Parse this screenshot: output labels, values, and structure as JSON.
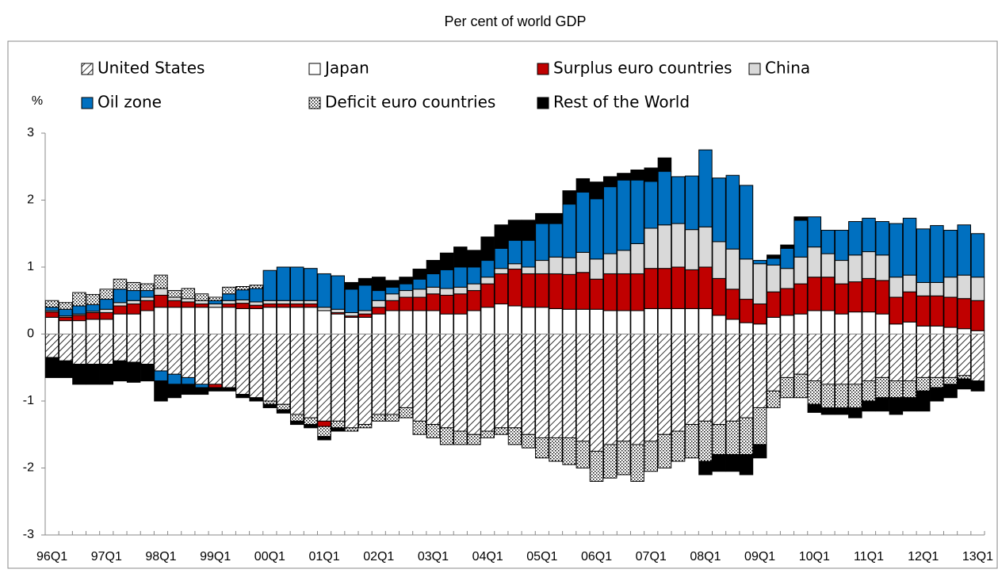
{
  "chart_data": {
    "type": "stacked-bar",
    "title": "Per cent of world GDP",
    "y_label": "%",
    "categories": [
      "96Q1",
      null,
      null,
      null,
      "97Q1",
      null,
      null,
      null,
      "98Q1",
      null,
      null,
      null,
      "99Q1",
      null,
      null,
      null,
      "00Q1",
      null,
      null,
      null,
      "01Q1",
      null,
      null,
      null,
      "02Q1",
      null,
      null,
      null,
      "03Q1",
      null,
      null,
      null,
      "04Q1",
      null,
      null,
      null,
      "05Q1",
      null,
      null,
      null,
      "06Q1",
      null,
      null,
      null,
      "07Q1",
      null,
      null,
      null,
      "08Q1",
      null,
      null,
      null,
      "09Q1",
      null,
      null,
      null,
      "10Q1",
      null,
      null,
      null,
      "11Q1",
      null,
      null,
      null,
      "12Q1",
      null,
      null,
      null,
      "13Q1"
    ],
    "series": [
      {
        "name": "United States",
        "color": "#000000",
        "pattern": "hatch",
        "values": [
          -0.35,
          -0.4,
          -0.45,
          -0.45,
          -0.45,
          -0.4,
          -0.42,
          -0.45,
          -0.55,
          -0.6,
          -0.65,
          -0.75,
          -0.75,
          -0.8,
          -0.9,
          -0.95,
          -1.0,
          -1.05,
          -1.2,
          -1.25,
          -1.3,
          -1.3,
          -1.4,
          -1.35,
          -1.2,
          -1.2,
          -1.1,
          -1.3,
          -1.35,
          -1.4,
          -1.45,
          -1.5,
          -1.45,
          -1.4,
          -1.4,
          -1.5,
          -1.55,
          -1.55,
          -1.55,
          -1.6,
          -1.75,
          -1.65,
          -1.6,
          -1.65,
          -1.6,
          -1.5,
          -1.45,
          -1.35,
          -1.3,
          -1.35,
          -1.3,
          -1.25,
          -1.1,
          -0.85,
          -0.65,
          -0.6,
          -0.7,
          -0.75,
          -0.75,
          -0.75,
          -0.7,
          -0.65,
          -0.7,
          -0.7,
          -0.65,
          -0.65,
          -0.65,
          -0.62,
          -0.7
        ]
      },
      {
        "name": "Japan",
        "color": "#ffffff",
        "values": [
          0.25,
          0.2,
          0.2,
          0.22,
          0.22,
          0.3,
          0.3,
          0.35,
          0.4,
          0.4,
          0.4,
          0.4,
          0.4,
          0.4,
          0.38,
          0.38,
          0.4,
          0.4,
          0.4,
          0.4,
          0.35,
          0.3,
          0.25,
          0.25,
          0.3,
          0.35,
          0.35,
          0.35,
          0.35,
          0.3,
          0.3,
          0.35,
          0.4,
          0.45,
          0.42,
          0.4,
          0.4,
          0.38,
          0.37,
          0.37,
          0.37,
          0.35,
          0.35,
          0.35,
          0.38,
          0.38,
          0.38,
          0.38,
          0.38,
          0.28,
          0.22,
          0.17,
          0.15,
          0.25,
          0.28,
          0.3,
          0.35,
          0.35,
          0.3,
          0.33,
          0.33,
          0.3,
          0.15,
          0.18,
          0.12,
          0.12,
          0.1,
          0.08,
          0.05
        ]
      },
      {
        "name": "Surplus euro countries",
        "color": "#c00000",
        "values": [
          0.08,
          0.05,
          0.08,
          0.1,
          0.1,
          0.12,
          0.15,
          0.15,
          0.18,
          0.1,
          0.08,
          0.05,
          -0.05,
          0.05,
          0.08,
          0.05,
          0.05,
          0.05,
          0.05,
          0.05,
          -0.08,
          0.02,
          0.02,
          0.05,
          0.1,
          0.15,
          0.2,
          0.2,
          0.25,
          0.28,
          0.3,
          0.3,
          0.35,
          0.45,
          0.55,
          0.5,
          0.5,
          0.52,
          0.52,
          0.55,
          0.45,
          0.55,
          0.55,
          0.55,
          0.6,
          0.6,
          0.62,
          0.58,
          0.62,
          0.55,
          0.45,
          0.35,
          0.3,
          0.38,
          0.4,
          0.45,
          0.5,
          0.5,
          0.45,
          0.45,
          0.5,
          0.5,
          0.4,
          0.45,
          0.45,
          0.45,
          0.45,
          0.45,
          0.45
        ]
      },
      {
        "name": "China",
        "color": "#d9d9d9",
        "values": [
          0.02,
          0.02,
          0.02,
          0.02,
          0.05,
          0.05,
          0.05,
          0.05,
          0.1,
          0.05,
          0.05,
          0.05,
          0.05,
          0.05,
          0.05,
          0.05,
          0.05,
          0.05,
          0.05,
          0.05,
          0.05,
          0.05,
          0.05,
          0.05,
          0.1,
          0.1,
          0.1,
          0.12,
          0.1,
          0.1,
          0.1,
          0.1,
          0.1,
          0.08,
          0.08,
          0.1,
          0.2,
          0.25,
          0.25,
          0.3,
          0.3,
          0.3,
          0.35,
          0.45,
          0.6,
          0.65,
          0.65,
          0.6,
          0.6,
          0.55,
          0.6,
          0.6,
          0.6,
          0.4,
          0.3,
          0.4,
          0.45,
          0.35,
          0.35,
          0.4,
          0.4,
          0.38,
          0.3,
          0.25,
          0.2,
          0.2,
          0.3,
          0.35,
          0.35
        ]
      },
      {
        "name": "Oil zone",
        "color": "#0070c0",
        "values": [
          0.05,
          0.1,
          0.12,
          0.1,
          0.15,
          0.2,
          0.15,
          0.1,
          -0.15,
          -0.15,
          -0.1,
          -0.05,
          0.05,
          0.1,
          0.15,
          0.2,
          0.45,
          0.5,
          0.5,
          0.48,
          0.5,
          0.5,
          0.35,
          0.38,
          0.15,
          0.1,
          0.1,
          0.15,
          0.2,
          0.28,
          0.3,
          0.25,
          0.25,
          0.3,
          0.35,
          0.4,
          0.55,
          0.5,
          0.8,
          0.9,
          0.9,
          1.0,
          1.05,
          0.95,
          0.7,
          0.8,
          0.7,
          0.8,
          1.15,
          0.95,
          1.1,
          1.1,
          0.05,
          0.1,
          0.3,
          0.55,
          0.45,
          0.35,
          0.45,
          0.5,
          0.5,
          0.5,
          0.8,
          0.85,
          0.8,
          0.85,
          0.7,
          0.75,
          0.65
        ]
      },
      {
        "name": "Deficit euro countries",
        "color": "#000000",
        "pattern": "dots",
        "values": [
          0.1,
          0.1,
          0.2,
          0.15,
          0.15,
          0.15,
          0.12,
          0.1,
          0.2,
          0.1,
          0.15,
          0.1,
          0.05,
          0.1,
          0.05,
          0.05,
          -0.05,
          -0.08,
          -0.1,
          -0.1,
          -0.15,
          -0.1,
          -0.05,
          -0.05,
          -0.1,
          -0.1,
          -0.15,
          -0.2,
          -0.2,
          -0.25,
          -0.2,
          -0.15,
          -0.1,
          -0.1,
          -0.25,
          -0.2,
          -0.3,
          -0.35,
          -0.4,
          -0.4,
          -0.45,
          -0.5,
          -0.5,
          -0.55,
          -0.45,
          -0.5,
          -0.45,
          -0.5,
          -0.6,
          -0.45,
          -0.5,
          -0.55,
          -0.55,
          -0.25,
          -0.3,
          -0.35,
          -0.35,
          -0.35,
          -0.35,
          -0.35,
          -0.3,
          -0.3,
          -0.25,
          -0.25,
          -0.2,
          -0.15,
          -0.1,
          -0.05,
          0
        ]
      },
      {
        "name": "Rest of the World",
        "color": "#000000",
        "values": [
          -0.3,
          -0.25,
          -0.3,
          -0.3,
          -0.3,
          -0.3,
          -0.3,
          -0.25,
          -0.3,
          -0.2,
          -0.15,
          -0.1,
          -0.05,
          -0.05,
          -0.05,
          -0.05,
          -0.05,
          -0.05,
          -0.05,
          -0.05,
          -0.05,
          -0.05,
          0.1,
          0.1,
          0.2,
          0.1,
          0.1,
          0.15,
          0.2,
          0.25,
          0.3,
          0.25,
          0.35,
          0.35,
          0.3,
          0.3,
          0.15,
          0.15,
          0.2,
          0.2,
          0.25,
          0.15,
          0.1,
          0.15,
          0.2,
          0.2,
          0,
          0,
          -0.2,
          -0.25,
          -0.25,
          -0.3,
          -0.2,
          0.05,
          0.05,
          0.05,
          -0.12,
          -0.1,
          -0.1,
          -0.15,
          -0.15,
          -0.2,
          -0.25,
          -0.2,
          -0.3,
          -0.2,
          -0.2,
          -0.15,
          -0.15
        ]
      }
    ],
    "ylim": [
      -3,
      3
    ],
    "yticks": [
      -3,
      -2,
      -1,
      0,
      1,
      2,
      3
    ],
    "legend": "top"
  }
}
